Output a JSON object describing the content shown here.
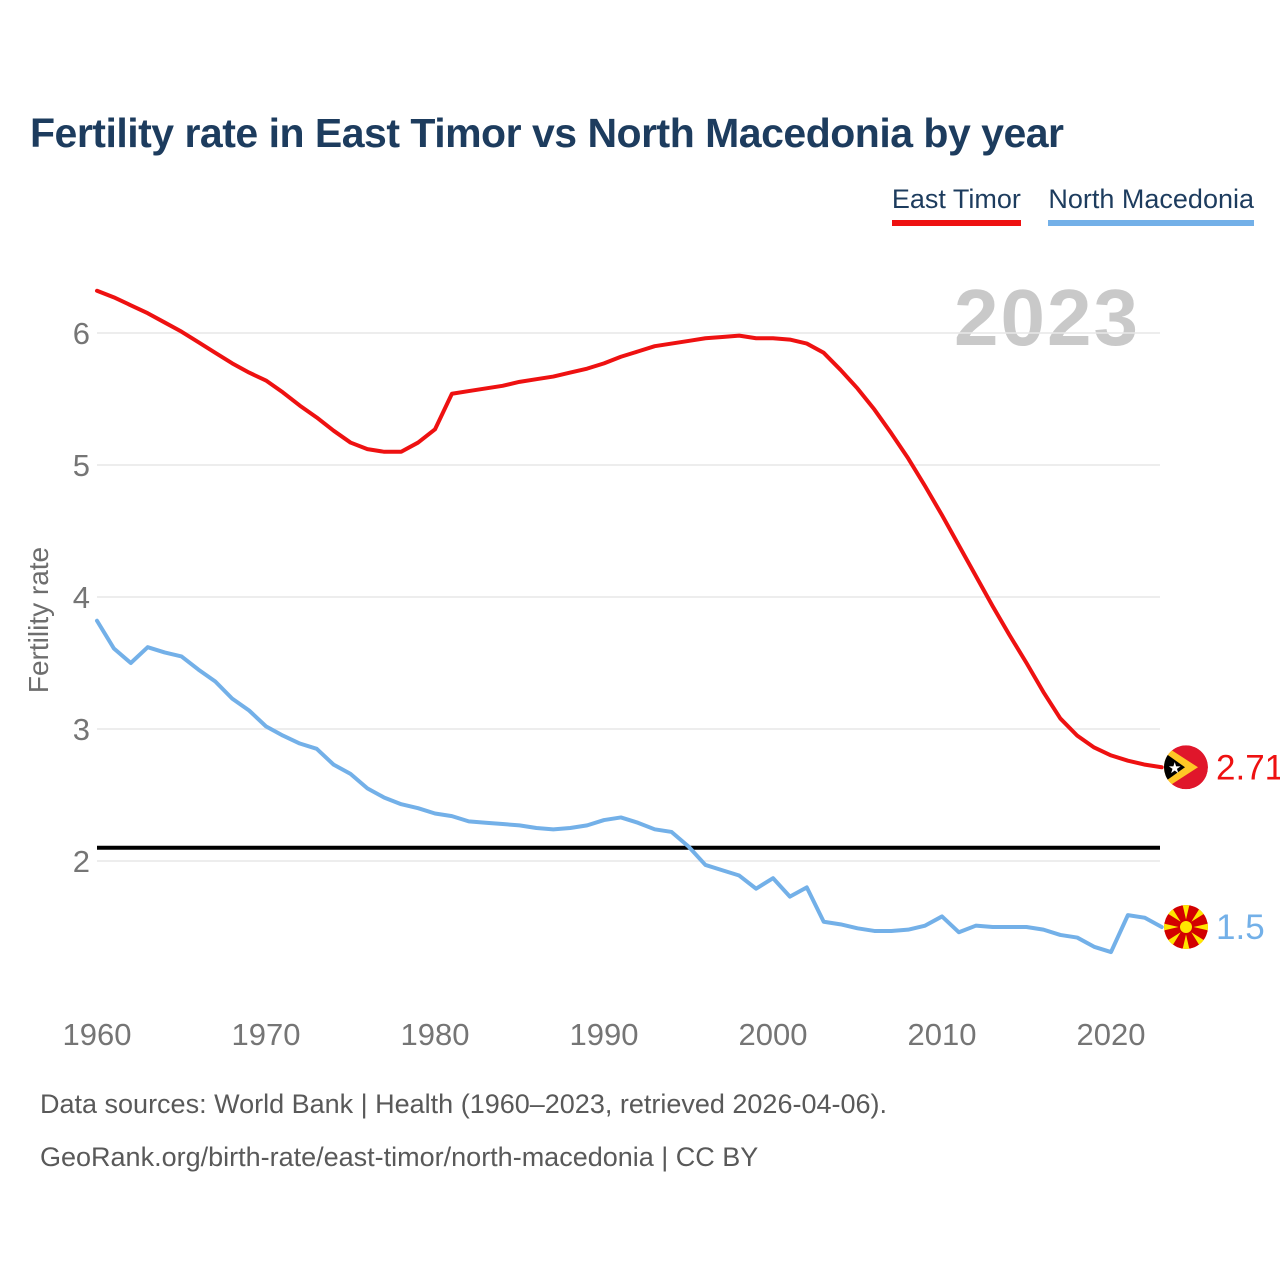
{
  "title": "Fertility rate in East Timor vs North Macedonia by year",
  "watermark": "2023",
  "legend": {
    "items": [
      {
        "label": "East Timor",
        "color": "#ee1111"
      },
      {
        "label": "North Macedonia",
        "color": "#73b0e8"
      }
    ]
  },
  "footer": {
    "line1": "Data sources: World Bank | Health (1960–2023, retrieved 2026-04-06).",
    "line2": "GeoRank.org/birth-rate/east-timor/north-macedonia | CC BY"
  },
  "chart_data": {
    "type": "line",
    "title": "Fertility rate in East Timor vs North Macedonia by year",
    "ylabel": "Fertility rate",
    "xlabel": "",
    "grid": "horizontal-only",
    "legend_position": "top-right",
    "xlim": [
      1960,
      2023
    ],
    "ylim": [
      0.9,
      6.45
    ],
    "x_ticks": [
      1960,
      1970,
      1980,
      1990,
      2000,
      2010,
      2020
    ],
    "y_ticks": [
      6,
      5,
      4,
      3,
      2
    ],
    "reference_line": {
      "value": 2.1,
      "color": "#000000"
    },
    "x": [
      1960,
      1961,
      1962,
      1963,
      1964,
      1965,
      1966,
      1967,
      1968,
      1969,
      1970,
      1971,
      1972,
      1973,
      1974,
      1975,
      1976,
      1977,
      1978,
      1979,
      1980,
      1981,
      1982,
      1983,
      1984,
      1985,
      1986,
      1987,
      1988,
      1989,
      1990,
      1991,
      1992,
      1993,
      1994,
      1995,
      1996,
      1997,
      1998,
      1999,
      2000,
      2001,
      2002,
      2003,
      2004,
      2005,
      2006,
      2007,
      2008,
      2009,
      2010,
      2011,
      2012,
      2013,
      2014,
      2015,
      2016,
      2017,
      2018,
      2019,
      2020,
      2021,
      2022,
      2023
    ],
    "series": [
      {
        "name": "East Timor",
        "color": "#ee1111",
        "end_label": "2.71",
        "flag": "east-timor",
        "values": [
          6.32,
          6.27,
          6.21,
          6.15,
          6.08,
          6.01,
          5.93,
          5.85,
          5.77,
          5.7,
          5.64,
          5.55,
          5.45,
          5.36,
          5.26,
          5.17,
          5.12,
          5.1,
          5.1,
          5.17,
          5.27,
          5.54,
          5.56,
          5.58,
          5.6,
          5.63,
          5.65,
          5.67,
          5.7,
          5.73,
          5.77,
          5.82,
          5.86,
          5.9,
          5.92,
          5.94,
          5.96,
          5.97,
          5.98,
          5.96,
          5.96,
          5.95,
          5.92,
          5.85,
          5.72,
          5.58,
          5.42,
          5.24,
          5.05,
          4.84,
          4.62,
          4.39,
          4.16,
          3.93,
          3.71,
          3.5,
          3.28,
          3.08,
          2.95,
          2.86,
          2.8,
          2.76,
          2.73,
          2.71
        ]
      },
      {
        "name": "North Macedonia",
        "color": "#73b0e8",
        "end_label": "1.5",
        "flag": "north-macedonia",
        "values": [
          3.82,
          3.61,
          3.5,
          3.62,
          3.58,
          3.55,
          3.45,
          3.36,
          3.23,
          3.14,
          3.02,
          2.95,
          2.89,
          2.85,
          2.73,
          2.66,
          2.55,
          2.48,
          2.43,
          2.4,
          2.36,
          2.34,
          2.3,
          2.29,
          2.28,
          2.27,
          2.25,
          2.24,
          2.25,
          2.27,
          2.31,
          2.33,
          2.29,
          2.24,
          2.22,
          2.11,
          1.97,
          1.93,
          1.89,
          1.79,
          1.87,
          1.73,
          1.8,
          1.54,
          1.52,
          1.49,
          1.47,
          1.47,
          1.48,
          1.51,
          1.58,
          1.46,
          1.51,
          1.5,
          1.5,
          1.5,
          1.48,
          1.44,
          1.42,
          1.35,
          1.31,
          1.59,
          1.57,
          1.5
        ]
      }
    ]
  }
}
